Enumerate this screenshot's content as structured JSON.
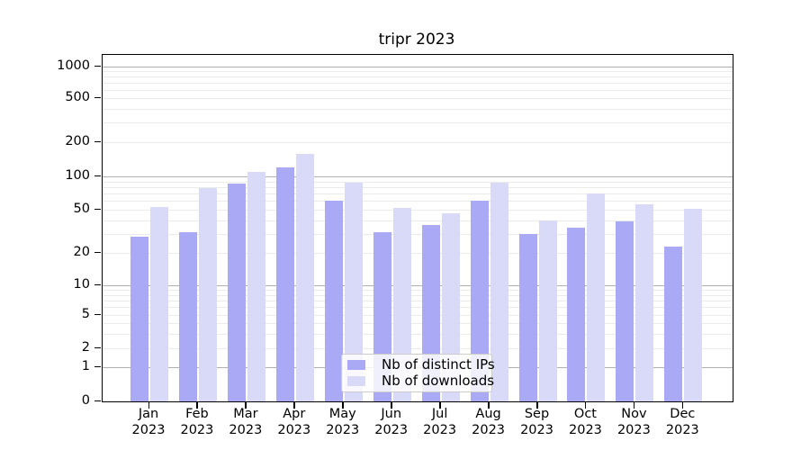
{
  "chart": {
    "title": "tripr 2023"
  },
  "chart_data": {
    "type": "bar",
    "title": "tripr 2023",
    "categories": [
      "Jan 2023",
      "Feb 2023",
      "Mar 2023",
      "Apr 2023",
      "May 2023",
      "Jun 2023",
      "Jul 2023",
      "Aug 2023",
      "Sep 2023",
      "Oct 2023",
      "Nov 2023",
      "Dec 2023"
    ],
    "xtick_line2": "2023",
    "series": [
      {
        "name": "Nb of distinct IPs",
        "color": "#a9a9f5",
        "values": [
          28,
          31,
          86,
          120,
          60,
          31,
          36,
          60,
          30,
          34,
          39,
          23
        ]
      },
      {
        "name": "Nb of downloads",
        "color": "#d9d9f8",
        "values": [
          53,
          78,
          110,
          158,
          88,
          52,
          46,
          88,
          40,
          70,
          56,
          51
        ]
      }
    ],
    "yscale": "symlog",
    "yticks": [
      0,
      1,
      2,
      5,
      10,
      20,
      50,
      100,
      200,
      500,
      1000
    ],
    "ytick_labels": [
      "0",
      "1",
      "2",
      "5",
      "10",
      "20",
      "50",
      "100",
      "200",
      "500",
      "1000"
    ],
    "ylim": [
      0,
      1300
    ],
    "xlabel": "",
    "ylabel": "",
    "grid": true,
    "legend_position": "lower center",
    "grid_major_color": "#b0b0b0",
    "grid_minor_color": "#ebebeb"
  }
}
